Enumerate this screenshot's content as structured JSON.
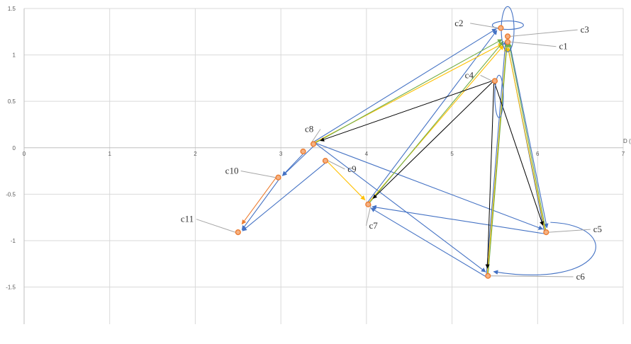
{
  "chart_data": {
    "type": "scatter",
    "title": "",
    "xlabel": "",
    "ylabel": "",
    "xlim": [
      0,
      7
    ],
    "ylim": [
      -1.9,
      1.5
    ],
    "x_ticks": [
      0,
      1,
      2,
      3,
      4,
      5,
      6,
      7
    ],
    "y_ticks": [
      1.5,
      1,
      0.5,
      0,
      -0.5,
      -1,
      -1.5
    ],
    "x_tick_labels": [
      "0",
      "1",
      "2",
      "3",
      "4",
      "5",
      "6",
      "7"
    ],
    "y_tick_labels": [
      "1.5",
      "1",
      "0.5",
      "0",
      "-0.5",
      "-1",
      "-1.5"
    ],
    "grid": true,
    "legend": "none",
    "truncated_axis_label": "D (",
    "colors": {
      "marker": "#ED7D31",
      "blue": "#4472C4",
      "yellow": "#FFC000",
      "green": "#70AD47",
      "black": "#000000",
      "orange": "#ED7D31",
      "leader": "#A6A6A6",
      "grid": "#D9D9D9"
    },
    "points": [
      {
        "id": "c1",
        "label": "c1",
        "x": 5.65,
        "y": 1.14,
        "lx": 6.25,
        "ly": 1.06
      },
      {
        "id": "c2",
        "label": "c2",
        "x": 5.57,
        "y": 1.29,
        "lx": 5.03,
        "ly": 1.31
      },
      {
        "id": "c3",
        "label": "c3",
        "x": 5.65,
        "y": 1.2,
        "lx": 6.5,
        "ly": 1.24
      },
      {
        "id": "c4",
        "label": "c4",
        "x": 5.5,
        "y": 0.72,
        "lx": 5.15,
        "ly": 0.75
      },
      {
        "id": "c5",
        "label": "c5",
        "x": 6.1,
        "y": -0.91,
        "lx": 6.65,
        "ly": -0.91
      },
      {
        "id": "c6",
        "label": "c6",
        "x": 5.42,
        "y": -1.38,
        "lx": 6.45,
        "ly": -1.42
      },
      {
        "id": "c7",
        "label": "c7",
        "x": 4.02,
        "y": -0.61,
        "lx": 4.03,
        "ly": -0.87
      },
      {
        "id": "c8",
        "label": "c8",
        "x": 3.38,
        "y": 0.04,
        "lx": 3.28,
        "ly": 0.17
      },
      {
        "id": "c9",
        "label": "c9",
        "x": 3.52,
        "y": -0.14,
        "lx": 3.78,
        "ly": -0.26
      },
      {
        "id": "c10",
        "label": "c10",
        "x": 2.97,
        "y": -0.32,
        "lx": 2.35,
        "ly": -0.28
      },
      {
        "id": "c11",
        "label": "c11",
        "x": 2.5,
        "y": -0.91,
        "lx": 1.83,
        "ly": -0.8
      },
      {
        "id": "c12",
        "label": "",
        "x": 3.26,
        "y": -0.04
      }
    ],
    "series": [
      {
        "color": "blue",
        "links": [
          [
            "c8",
            "c2"
          ],
          [
            "c7",
            "c2"
          ],
          [
            "c6",
            "c3"
          ],
          [
            "c5",
            "c3"
          ],
          [
            "c8",
            "c10"
          ],
          [
            "c10",
            "c11"
          ],
          [
            "c9",
            "c11"
          ],
          [
            "c8",
            "c6"
          ],
          [
            "c8",
            "c5"
          ],
          [
            "c12",
            "c10"
          ],
          [
            "c5",
            "c7"
          ],
          [
            "c6",
            "c7"
          ],
          [
            "c1",
            "c5"
          ]
        ]
      },
      {
        "color": "yellow",
        "links": [
          [
            "c8",
            "c1"
          ],
          [
            "c7",
            "c1"
          ],
          [
            "c6",
            "c1"
          ],
          [
            "c5",
            "c1"
          ],
          [
            "c9",
            "c7"
          ]
        ]
      },
      {
        "color": "green",
        "links": [
          [
            "c8",
            "c3"
          ],
          [
            "c7",
            "c3"
          ],
          [
            "c6",
            "c3"
          ],
          [
            "c5",
            "c3"
          ]
        ]
      },
      {
        "color": "black",
        "links": [
          [
            "c4",
            "c8"
          ],
          [
            "c4",
            "c7"
          ],
          [
            "c4",
            "c6"
          ],
          [
            "c4",
            "c5"
          ]
        ]
      },
      {
        "color": "orange",
        "links": [
          [
            "c10",
            "c11"
          ]
        ]
      }
    ]
  }
}
